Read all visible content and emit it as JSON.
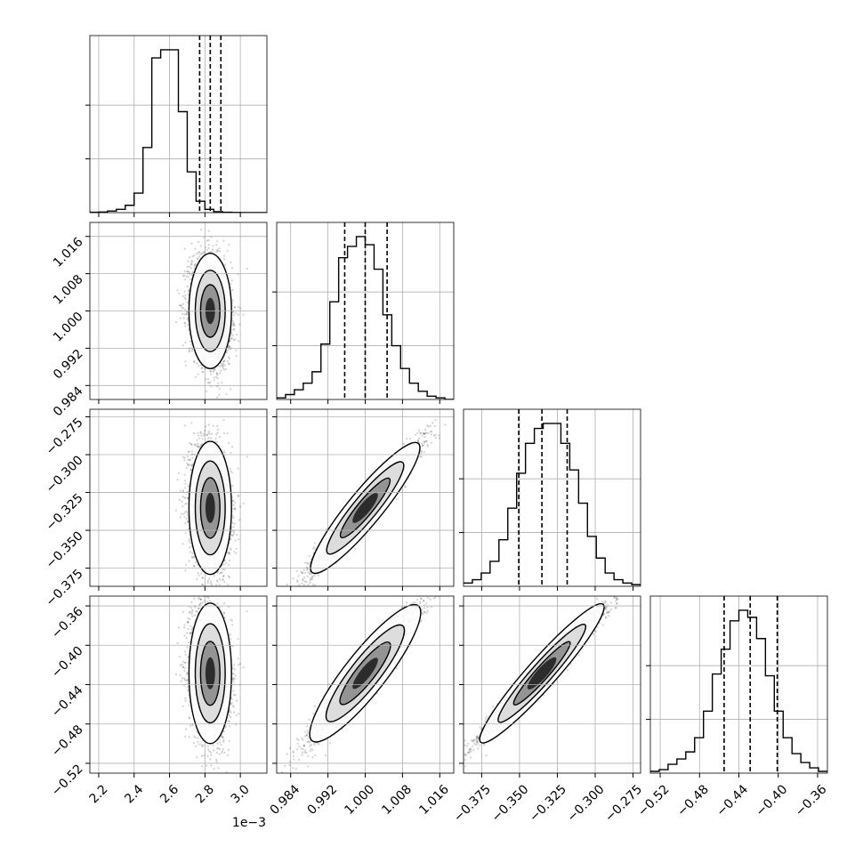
{
  "chart_data": {
    "type": "corner",
    "grid": true,
    "params": [
      {
        "range": [
          2.15,
          3.15
        ],
        "ticks": [
          {
            "v": 2.2,
            "label": "2.2"
          },
          {
            "v": 2.4,
            "label": "2.4"
          },
          {
            "v": 2.6,
            "label": "2.6"
          },
          {
            "v": 2.8,
            "label": "2.8"
          },
          {
            "v": 3.0,
            "label": "3.0"
          }
        ],
        "offset_label": "1e−3",
        "median": 2.83,
        "quantiles": [
          2.77,
          2.83,
          2.89
        ],
        "sd": 0.05,
        "hist": [
          0.002,
          0.004,
          0.01,
          0.02,
          0.045,
          0.12,
          0.4,
          0.95,
          1.0,
          1.0,
          0.62,
          0.25,
          0.07,
          0.02,
          0.006,
          0.002,
          0.001,
          0.0,
          0.0,
          0.0
        ]
      },
      {
        "range": [
          0.981,
          1.019
        ],
        "ticks": [
          {
            "v": 0.984,
            "label": "0.984"
          },
          {
            "v": 0.992,
            "label": "0.992"
          },
          {
            "v": 1.0,
            "label": "1.000"
          },
          {
            "v": 1.008,
            "label": "1.008"
          },
          {
            "v": 1.016,
            "label": "1.016"
          }
        ],
        "offset_label": "",
        "median": 1.0,
        "quantiles": [
          0.9956,
          1.0,
          1.0047
        ],
        "sd": 0.0045,
        "hist": [
          0.01,
          0.03,
          0.06,
          0.1,
          0.17,
          0.34,
          0.6,
          0.87,
          0.94,
          1.0,
          0.95,
          0.8,
          0.52,
          0.33,
          0.19,
          0.1,
          0.05,
          0.02,
          0.01,
          0.0
        ]
      },
      {
        "range": [
          -0.387,
          -0.27
        ],
        "ticks": [
          {
            "v": -0.375,
            "label": "−0.375"
          },
          {
            "v": -0.35,
            "label": "−0.350"
          },
          {
            "v": -0.325,
            "label": "−0.325"
          },
          {
            "v": -0.3,
            "label": "−0.300"
          },
          {
            "v": -0.275,
            "label": "−0.275"
          }
        ],
        "offset_label": "",
        "median": -0.3352,
        "quantiles": [
          -0.3505,
          -0.3352,
          -0.3185
        ],
        "sd": 0.016,
        "hist": [
          0.02,
          0.04,
          0.08,
          0.15,
          0.28,
          0.47,
          0.68,
          0.86,
          0.95,
          0.98,
          0.98,
          0.86,
          0.7,
          0.5,
          0.3,
          0.17,
          0.08,
          0.04,
          0.02,
          0.01
        ]
      },
      {
        "range": [
          -0.53,
          -0.35
        ],
        "ticks": [
          {
            "v": -0.52,
            "label": "−0.52"
          },
          {
            "v": -0.48,
            "label": "−0.48"
          },
          {
            "v": -0.44,
            "label": "−0.44"
          },
          {
            "v": -0.4,
            "label": "−0.40"
          },
          {
            "v": -0.36,
            "label": "−0.36"
          }
        ],
        "offset_label": "",
        "median": -0.4285,
        "quantiles": [
          -0.455,
          -0.4285,
          -0.401
        ],
        "sd": 0.026,
        "hist": [
          0.01,
          0.02,
          0.05,
          0.08,
          0.12,
          0.2,
          0.35,
          0.56,
          0.7,
          0.86,
          0.92,
          0.88,
          0.76,
          0.55,
          0.35,
          0.2,
          0.11,
          0.06,
          0.03,
          0.01
        ]
      }
    ],
    "correlations": [
      [
        1.0,
        -0.15,
        -0.15,
        -0.15
      ],
      [
        -0.15,
        1.0,
        0.97,
        0.96
      ],
      [
        -0.15,
        0.97,
        1.0,
        0.98
      ],
      [
        -0.15,
        0.96,
        0.98,
        1.0
      ]
    ]
  }
}
